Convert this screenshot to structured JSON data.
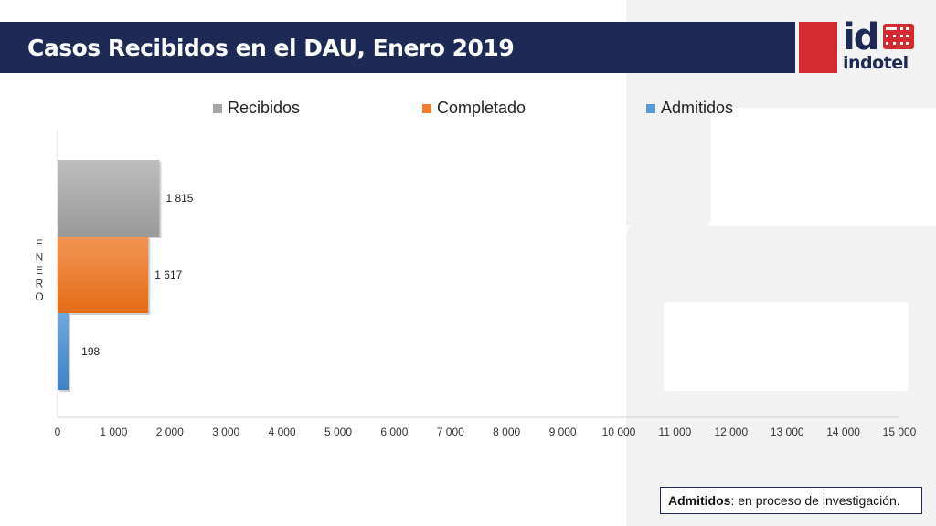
{
  "header": {
    "title": "Casos Recibidos en el DAU, Enero 2019",
    "logo_text": "indotel",
    "logo_mark": "id"
  },
  "colors": {
    "title_bar": "#1c2a55",
    "accent_red": "#d42b30",
    "recibidos": "#a6a6a6",
    "completado": "#ed7d31",
    "admitidos": "#5b9bd5"
  },
  "note": {
    "term": "Admitidos",
    "text": ": en proceso de investigación."
  },
  "chart_data": {
    "type": "bar",
    "orientation": "horizontal",
    "categories": [
      "E\nN\nE\nR\nO"
    ],
    "category_label": "ENERO",
    "series": [
      {
        "name": "Recibidos",
        "values": [
          1815
        ],
        "label": "1 815"
      },
      {
        "name": "Completado",
        "values": [
          1617
        ],
        "label": "1 617"
      },
      {
        "name": "Admitidos",
        "values": [
          198
        ],
        "label": "198"
      }
    ],
    "xlim": [
      0,
      15000
    ],
    "xticks": [
      "0",
      "1 000",
      "2 000",
      "3 000",
      "4 000",
      "5 000",
      "6 000",
      "7 000",
      "8 000",
      "9 000",
      "10 000",
      "11 000",
      "12 000",
      "13 000",
      "14 000",
      "15 000"
    ],
    "legend": "top",
    "grid": false
  }
}
